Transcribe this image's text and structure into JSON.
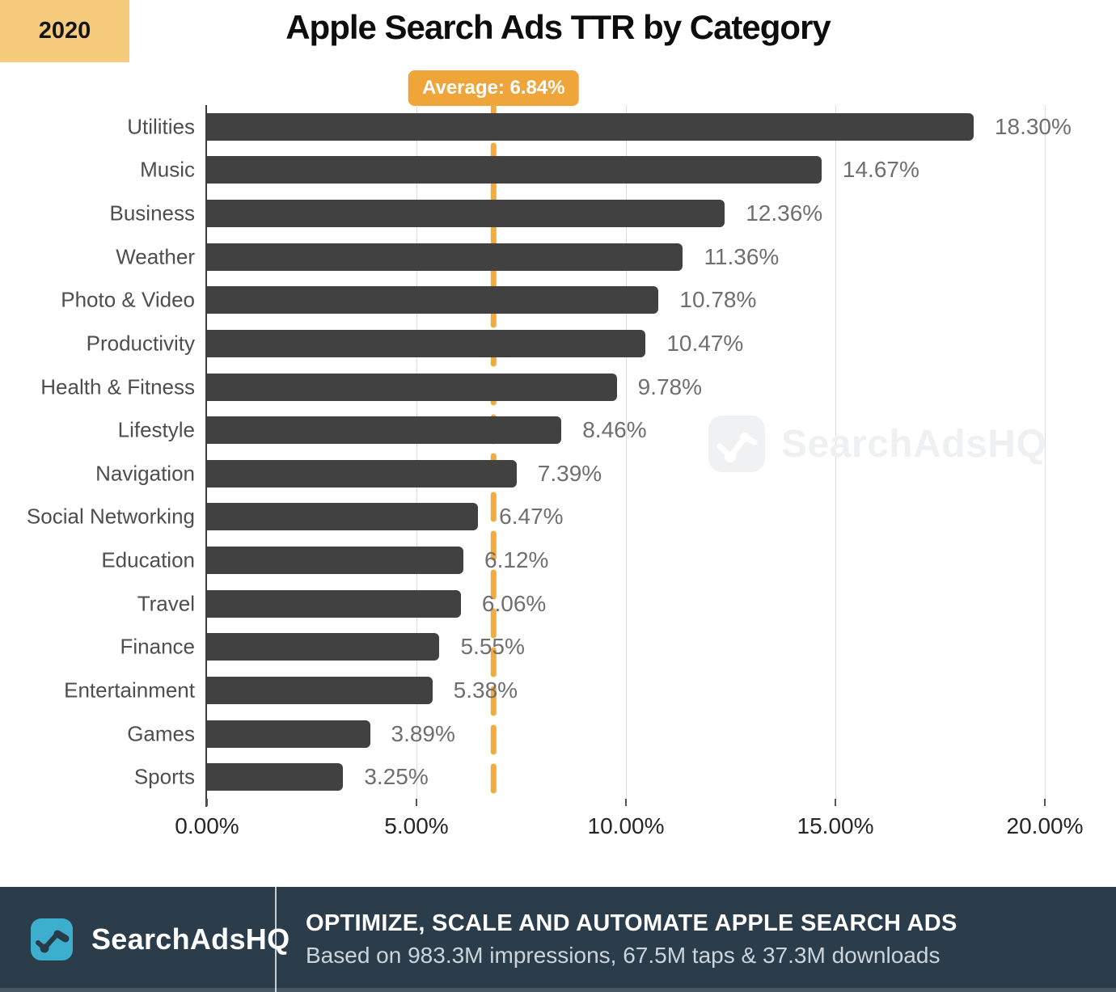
{
  "header": {
    "year": "2020",
    "title": "Apple Search Ads TTR by Category"
  },
  "average_badge": {
    "label": "Average: 6.84%"
  },
  "watermark": {
    "text": "SearchAdsHQ",
    "icon": "line-chart-zigzag-icon"
  },
  "chart_data": {
    "type": "bar",
    "orientation": "horizontal",
    "title": "Apple Search Ads TTR by Category",
    "categories": [
      "Utilities",
      "Music",
      "Business",
      "Weather",
      "Photo & Video",
      "Productivity",
      "Health & Fitness",
      "Lifestyle",
      "Navigation",
      "Social Networking",
      "Education",
      "Travel",
      "Finance",
      "Entertainment",
      "Games",
      "Sports"
    ],
    "values": [
      18.3,
      14.67,
      12.36,
      11.36,
      10.78,
      10.47,
      9.78,
      8.46,
      7.39,
      6.47,
      6.12,
      6.06,
      5.55,
      5.38,
      3.89,
      3.25
    ],
    "value_labels": [
      "18.30%",
      "14.67%",
      "12.36%",
      "11.36%",
      "10.78%",
      "10.47%",
      "9.78%",
      "8.46%",
      "7.39%",
      "6.47%",
      "6.12%",
      "6.06%",
      "5.55%",
      "5.38%",
      "3.89%",
      "3.25%"
    ],
    "xlim": [
      0,
      20
    ],
    "x_ticks": {
      "values": [
        0,
        5,
        10,
        15,
        20
      ],
      "labels": [
        "0.00%",
        "5.00%",
        "10.00%",
        "15.00%",
        "20.00%"
      ]
    },
    "average": {
      "value": 6.84,
      "label": "Average: 6.84%"
    },
    "grid": true,
    "legend": "none",
    "xlabel": "",
    "ylabel": ""
  },
  "footer": {
    "brand": "SearchAdsHQ",
    "headline": "OPTIMIZE, SCALE AND AUTOMATE APPLE SEARCH ADS",
    "subline": "Based on 983.3M impressions, 67.5M taps & 37.3M downloads"
  },
  "colors": {
    "bar": "#414141",
    "value_label": "#6F6F6F",
    "average_dash": "#F1AB3F",
    "average_badge_bg": "#F0A53B",
    "year_badge_bg": "#F6CC7C",
    "footer_bg": "#2B3C4B",
    "brand_teal": "#3CAFCE",
    "watermark_gray": "#F0F1F3",
    "gridline": "#DEDEDE"
  }
}
